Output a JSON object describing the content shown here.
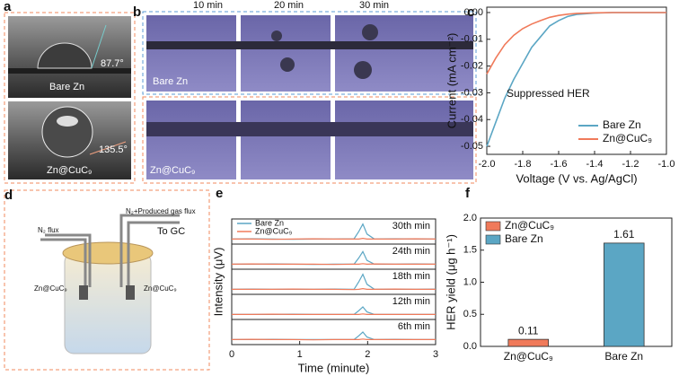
{
  "panels": {
    "a": {
      "letter": "a",
      "angle_top": "87.7°",
      "label_top": "Bare Zn",
      "angle_bottom": "135.5°",
      "label_bottom": "Zn@CuC₉"
    },
    "b": {
      "letter": "b",
      "times": [
        "10 min",
        "20 min",
        "30 min"
      ],
      "label_top": "Bare Zn",
      "label_bottom": "Zn@CuC₉"
    },
    "c": {
      "letter": "c"
    },
    "d": {
      "letter": "d",
      "n2_in": "N₂ flux",
      "n2_out": "N₂+Produced gas flux",
      "to_gc": "To GC",
      "electrode_left": "Zn@CuC₉",
      "electrode_right": "Zn@CuC₉"
    },
    "e": {
      "letter": "e"
    },
    "f": {
      "letter": "f"
    }
  },
  "chart_data": [
    {
      "type": "line",
      "xlabel": "Voltage (V vs. Ag/AgCl)",
      "ylabel": "Current (mA cm⁻²)",
      "annotation": "Suppressed HER",
      "legend": "lower right",
      "x": [
        -2.0,
        -1.95,
        -1.9,
        -1.85,
        -1.8,
        -1.75,
        -1.7,
        -1.65,
        -1.6,
        -1.55,
        -1.5,
        -1.4,
        -1.3,
        -1.2,
        -1.1,
        -1.0
      ],
      "series": [
        {
          "name": "Bare Zn",
          "color": "#5ba6c4",
          "values": [
            -0.05,
            -0.041,
            -0.032,
            -0.025,
            -0.019,
            -0.013,
            -0.009,
            -0.005,
            -0.003,
            -0.0015,
            -0.0007,
            -0.0002,
            0,
            0,
            0,
            0
          ]
        },
        {
          "name": "Zn@CuC₉",
          "color": "#f07a5a",
          "values": [
            -0.023,
            -0.017,
            -0.012,
            -0.0085,
            -0.006,
            -0.0043,
            -0.003,
            -0.0018,
            -0.0011,
            -0.0006,
            -0.0003,
            -0.0001,
            0,
            0,
            0,
            0
          ]
        }
      ],
      "xlim": [
        -2.0,
        -1.0
      ],
      "xticks": [
        {
          "value": -2,
          "label": "-2.0"
        },
        {
          "value": -1.8,
          "label": "-1.8"
        },
        {
          "value": -1.6,
          "label": "-1.6"
        },
        {
          "value": -1.4,
          "label": "-1.4"
        },
        {
          "value": -1.2,
          "label": "-1.2"
        },
        {
          "value": -1,
          "label": "-1.0"
        }
      ],
      "ylim": [
        -0.053,
        0.002
      ],
      "yticks": [
        {
          "value": 0,
          "label": "0.00"
        },
        {
          "value": -0.01,
          "label": "-0.01"
        },
        {
          "value": -0.02,
          "label": "-0.02"
        },
        {
          "value": -0.03,
          "label": "-0.03"
        },
        {
          "value": -0.04,
          "label": "-0.04"
        },
        {
          "value": -0.05,
          "label": "-0.05"
        }
      ]
    },
    {
      "type": "line-stack",
      "xlabel": "Time (minute)",
      "ylabel": "Intensity (μV)",
      "x": [
        0,
        0.3,
        0.6,
        0.9,
        1.2,
        1.5,
        1.8,
        1.87,
        1.93,
        1.99,
        2.1,
        2.4,
        2.7,
        3.0
      ],
      "xlim": [
        0,
        3
      ],
      "xticks": [
        0,
        1,
        2,
        3
      ],
      "ylim": [
        0,
        10
      ],
      "series": [
        {
          "name": "Bare Zn",
          "color": "#5ba6c4"
        },
        {
          "name": "Zn@CuC₉",
          "color": "#f07a5a"
        }
      ],
      "panels": [
        {
          "label": "30th min",
          "values": [
            [
              2,
              2.1,
              2,
              1.9,
              2,
              2,
              2.1,
              5,
              8,
              4,
              2,
              2.1,
              2,
              2
            ],
            [
              2,
              2,
              1.9,
              2,
              2.1,
              2,
              2,
              2,
              2.3,
              2,
              2,
              2,
              2.1,
              2
            ]
          ]
        },
        {
          "label": "24th min",
          "values": [
            [
              2,
              2,
              2.1,
              2,
              1.9,
              2,
              2,
              4.5,
              7,
              3.5,
              2,
              2,
              2.1,
              2
            ],
            [
              2,
              2.1,
              2,
              2,
              2,
              1.9,
              2,
              2,
              2.2,
              2,
              2.1,
              2,
              2,
              2
            ]
          ]
        },
        {
          "label": "18th min",
          "values": [
            [
              2,
              2.1,
              2,
              2,
              2,
              2.1,
              2,
              5,
              8,
              4,
              2,
              2,
              2,
              2.1
            ],
            [
              2,
              2,
              2,
              2.1,
              2,
              2,
              1.9,
              2,
              2.3,
              2,
              2,
              2.1,
              2,
              2
            ]
          ]
        },
        {
          "label": "12th min",
          "values": [
            [
              2,
              2,
              2,
              2.1,
              2,
              2,
              2,
              3.5,
              5,
              3,
              2,
              2,
              2,
              2
            ],
            [
              2,
              2,
              2.1,
              2,
              2,
              2,
              2,
              2,
              2.2,
              2,
              2,
              2,
              2,
              2
            ]
          ]
        },
        {
          "label": "6th min",
          "values": [
            [
              2,
              2,
              2.1,
              2,
              2,
              2,
              2,
              3.5,
              5,
              3,
              2,
              2.1,
              2,
              2
            ],
            [
              2,
              2.1,
              2,
              2,
              1.9,
              2,
              2,
              2,
              2.2,
              2,
              2,
              2,
              2,
              2
            ]
          ]
        }
      ]
    },
    {
      "type": "bar",
      "ylabel": "HER yield (μg h⁻¹)",
      "categories": [
        "Zn@CuC₉",
        "Bare Zn"
      ],
      "values": [
        0.11,
        1.61
      ],
      "colors": [
        "#f07a5a",
        "#5ba6c4"
      ],
      "ylim": [
        0,
        2.0
      ],
      "yticks": [
        {
          "value": 0,
          "label": "0.0"
        },
        {
          "value": 0.5,
          "label": "0.5"
        },
        {
          "value": 1,
          "label": "1.0"
        },
        {
          "value": 1.5,
          "label": "1.5"
        },
        {
          "value": 2,
          "label": "2.0"
        }
      ]
    }
  ]
}
